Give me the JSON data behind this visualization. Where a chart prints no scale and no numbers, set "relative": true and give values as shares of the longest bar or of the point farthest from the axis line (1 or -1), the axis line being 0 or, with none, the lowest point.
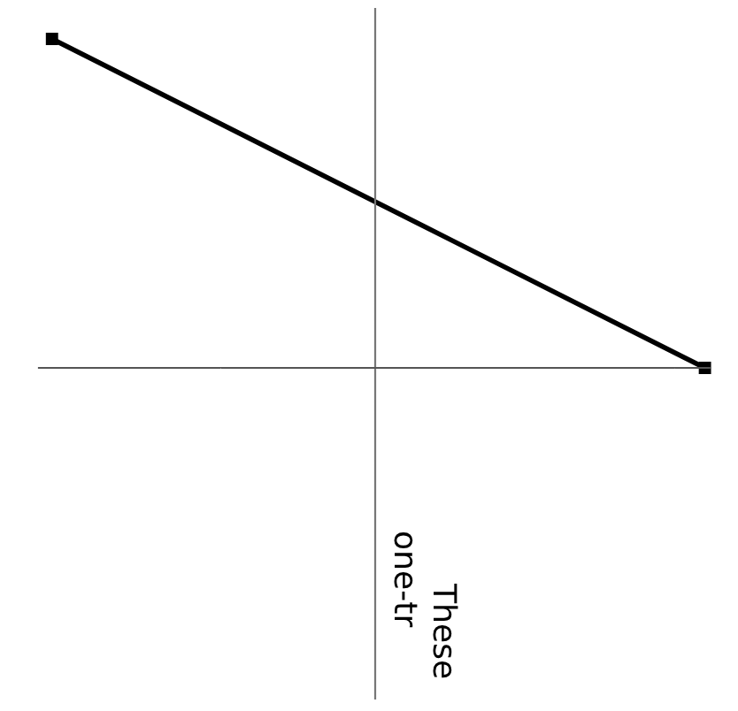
{
  "chart_data": {
    "type": "line",
    "relative": true,
    "categories": [
      null,
      null
    ],
    "series": [
      {
        "color": "#000000",
        "values": [
          1,
          0
        ]
      }
    ],
    "marker": "square",
    "line_style": "solid",
    "annotations": [
      "These",
      "one-tr"
    ]
  }
}
